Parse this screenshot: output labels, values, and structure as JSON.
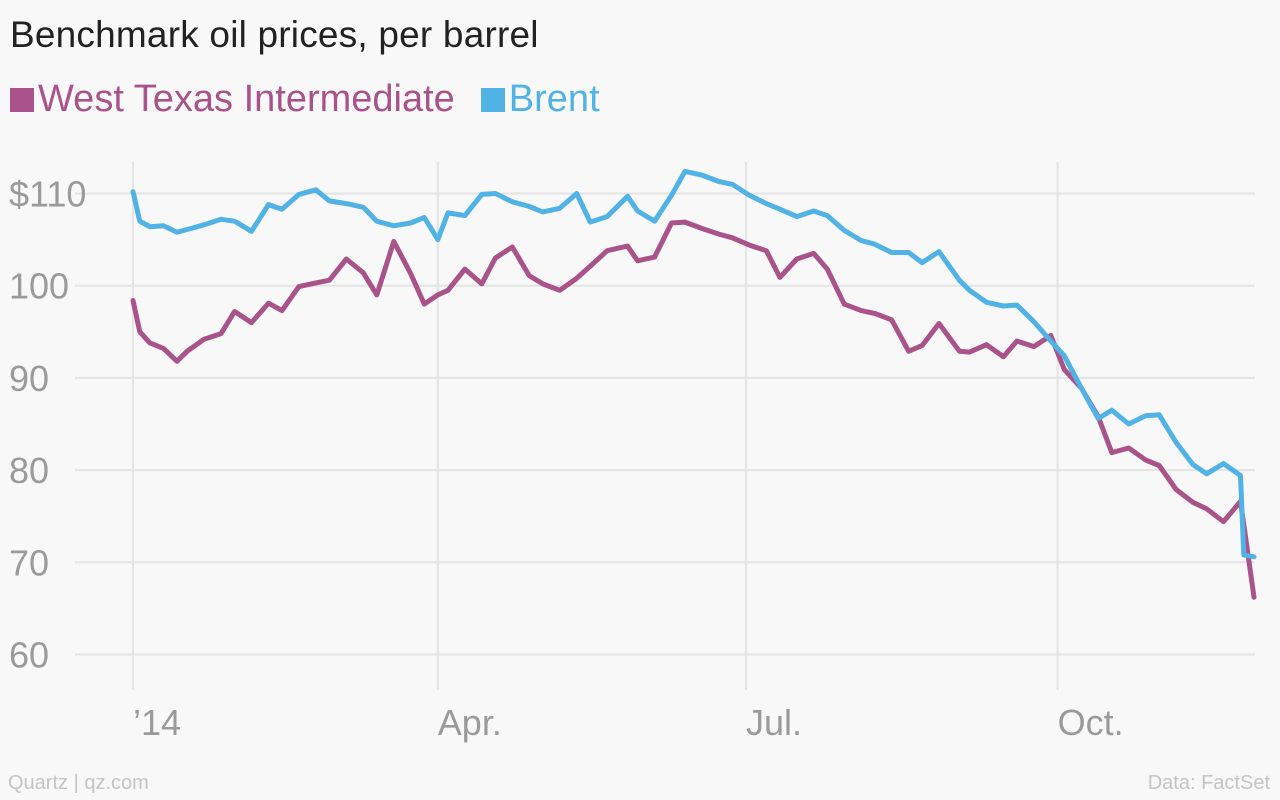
{
  "chart_data": {
    "type": "line",
    "title": "Benchmark oil prices, per barrel",
    "xlabel": "",
    "ylabel": "",
    "x_ticks": [
      "’14",
      "Apr.",
      "Jul.",
      "Oct."
    ],
    "x_tick_dates": [
      "2014-01-01",
      "2014-04-01",
      "2014-07-01",
      "2014-10-01"
    ],
    "y_ticks": [
      "$110",
      "100",
      "90",
      "80",
      "70",
      "60"
    ],
    "y_tick_values": [
      110,
      100,
      90,
      80,
      70,
      60
    ],
    "ylim": [
      55,
      115
    ],
    "xlim": [
      "2014-01-01",
      "2014-11-28"
    ],
    "grid": true,
    "legend_position": "top-left",
    "series": [
      {
        "name": "West Texas Intermediate",
        "color": "#a9538a",
        "x": [
          "2014-01-01",
          "2014-01-03",
          "2014-01-06",
          "2014-01-10",
          "2014-01-14",
          "2014-01-17",
          "2014-01-22",
          "2014-01-27",
          "2014-01-31",
          "2014-02-05",
          "2014-02-10",
          "2014-02-14",
          "2014-02-19",
          "2014-02-24",
          "2014-02-28",
          "2014-03-05",
          "2014-03-10",
          "2014-03-14",
          "2014-03-19",
          "2014-03-24",
          "2014-03-28",
          "2014-04-01",
          "2014-04-04",
          "2014-04-09",
          "2014-04-14",
          "2014-04-18",
          "2014-04-23",
          "2014-04-28",
          "2014-05-02",
          "2014-05-07",
          "2014-05-12",
          "2014-05-16",
          "2014-05-21",
          "2014-05-27",
          "2014-05-30",
          "2014-06-04",
          "2014-06-09",
          "2014-06-13",
          "2014-06-18",
          "2014-06-23",
          "2014-06-27",
          "2014-07-02",
          "2014-07-07",
          "2014-07-11",
          "2014-07-16",
          "2014-07-21",
          "2014-07-25",
          "2014-07-30",
          "2014-08-04",
          "2014-08-08",
          "2014-08-13",
          "2014-08-18",
          "2014-08-22",
          "2014-08-27",
          "2014-09-02",
          "2014-09-05",
          "2014-09-10",
          "2014-09-15",
          "2014-09-19",
          "2014-09-24",
          "2014-09-29",
          "2014-10-03",
          "2014-10-08",
          "2014-10-13",
          "2014-10-17",
          "2014-10-22",
          "2014-10-27",
          "2014-10-31",
          "2014-11-05",
          "2014-11-10",
          "2014-11-14",
          "2014-11-19",
          "2014-11-24",
          "2014-11-25",
          "2014-11-28"
        ],
        "values": [
          98.4,
          95.0,
          93.8,
          93.2,
          91.8,
          92.9,
          94.2,
          94.8,
          97.2,
          96.0,
          98.1,
          97.3,
          99.9,
          100.3,
          100.6,
          102.9,
          101.4,
          99.0,
          104.8,
          101.3,
          98.0,
          99.0,
          99.5,
          101.8,
          100.2,
          103.0,
          104.2,
          101.1,
          100.2,
          99.5,
          100.8,
          102.1,
          103.8,
          104.3,
          102.7,
          103.1,
          106.8,
          106.9,
          106.2,
          105.6,
          105.2,
          104.4,
          103.8,
          100.9,
          102.9,
          103.5,
          101.8,
          98.0,
          97.3,
          97.0,
          96.3,
          92.9,
          93.5,
          95.9,
          92.9,
          92.8,
          93.6,
          92.3,
          94.0,
          93.4,
          94.6,
          90.9,
          88.9,
          85.8,
          81.9,
          82.4,
          81.1,
          80.5,
          77.9,
          76.5,
          75.8,
          74.4,
          76.6,
          74.1,
          66.2
        ]
      },
      {
        "name": "Brent",
        "color": "#51b2e5",
        "x": [
          "2014-01-01",
          "2014-01-03",
          "2014-01-06",
          "2014-01-10",
          "2014-01-14",
          "2014-01-17",
          "2014-01-22",
          "2014-01-27",
          "2014-01-31",
          "2014-02-05",
          "2014-02-10",
          "2014-02-14",
          "2014-02-19",
          "2014-02-24",
          "2014-02-28",
          "2014-03-05",
          "2014-03-10",
          "2014-03-14",
          "2014-03-19",
          "2014-03-24",
          "2014-03-28",
          "2014-04-01",
          "2014-04-04",
          "2014-04-09",
          "2014-04-14",
          "2014-04-18",
          "2014-04-23",
          "2014-04-28",
          "2014-05-02",
          "2014-05-07",
          "2014-05-12",
          "2014-05-16",
          "2014-05-21",
          "2014-05-27",
          "2014-05-30",
          "2014-06-04",
          "2014-06-09",
          "2014-06-13",
          "2014-06-18",
          "2014-06-23",
          "2014-06-27",
          "2014-07-02",
          "2014-07-07",
          "2014-07-11",
          "2014-07-16",
          "2014-07-21",
          "2014-07-25",
          "2014-07-30",
          "2014-08-04",
          "2014-08-08",
          "2014-08-13",
          "2014-08-18",
          "2014-08-22",
          "2014-08-27",
          "2014-09-02",
          "2014-09-05",
          "2014-09-10",
          "2014-09-15",
          "2014-09-19",
          "2014-09-24",
          "2014-09-29",
          "2014-10-03",
          "2014-10-08",
          "2014-10-13",
          "2014-10-17",
          "2014-10-22",
          "2014-10-27",
          "2014-10-31",
          "2014-11-05",
          "2014-11-10",
          "2014-11-14",
          "2014-11-19",
          "2014-11-24",
          "2014-11-25",
          "2014-11-28"
        ],
        "values": [
          110.2,
          107.0,
          106.4,
          106.5,
          105.8,
          106.1,
          106.6,
          107.2,
          107.0,
          105.9,
          108.8,
          108.3,
          109.9,
          110.4,
          109.2,
          108.9,
          108.5,
          107.0,
          106.5,
          106.8,
          107.4,
          105.0,
          107.9,
          107.6,
          109.9,
          110.0,
          109.1,
          108.6,
          108.0,
          108.4,
          110.0,
          106.9,
          107.5,
          109.7,
          108.1,
          107.0,
          109.8,
          112.4,
          112.0,
          111.3,
          111.0,
          109.8,
          108.9,
          108.3,
          107.5,
          108.1,
          107.6,
          106.0,
          104.9,
          104.5,
          103.6,
          103.6,
          102.5,
          103.7,
          100.6,
          99.5,
          98.2,
          97.8,
          97.9,
          96.1,
          94.0,
          92.4,
          88.9,
          85.6,
          86.5,
          85.0,
          85.9,
          86.0,
          83.0,
          80.6,
          79.6,
          80.7,
          79.4,
          70.8,
          70.6
        ]
      }
    ]
  },
  "footer": {
    "source_left": "Quartz | qz.com",
    "source_right": "Data: FactSet"
  }
}
